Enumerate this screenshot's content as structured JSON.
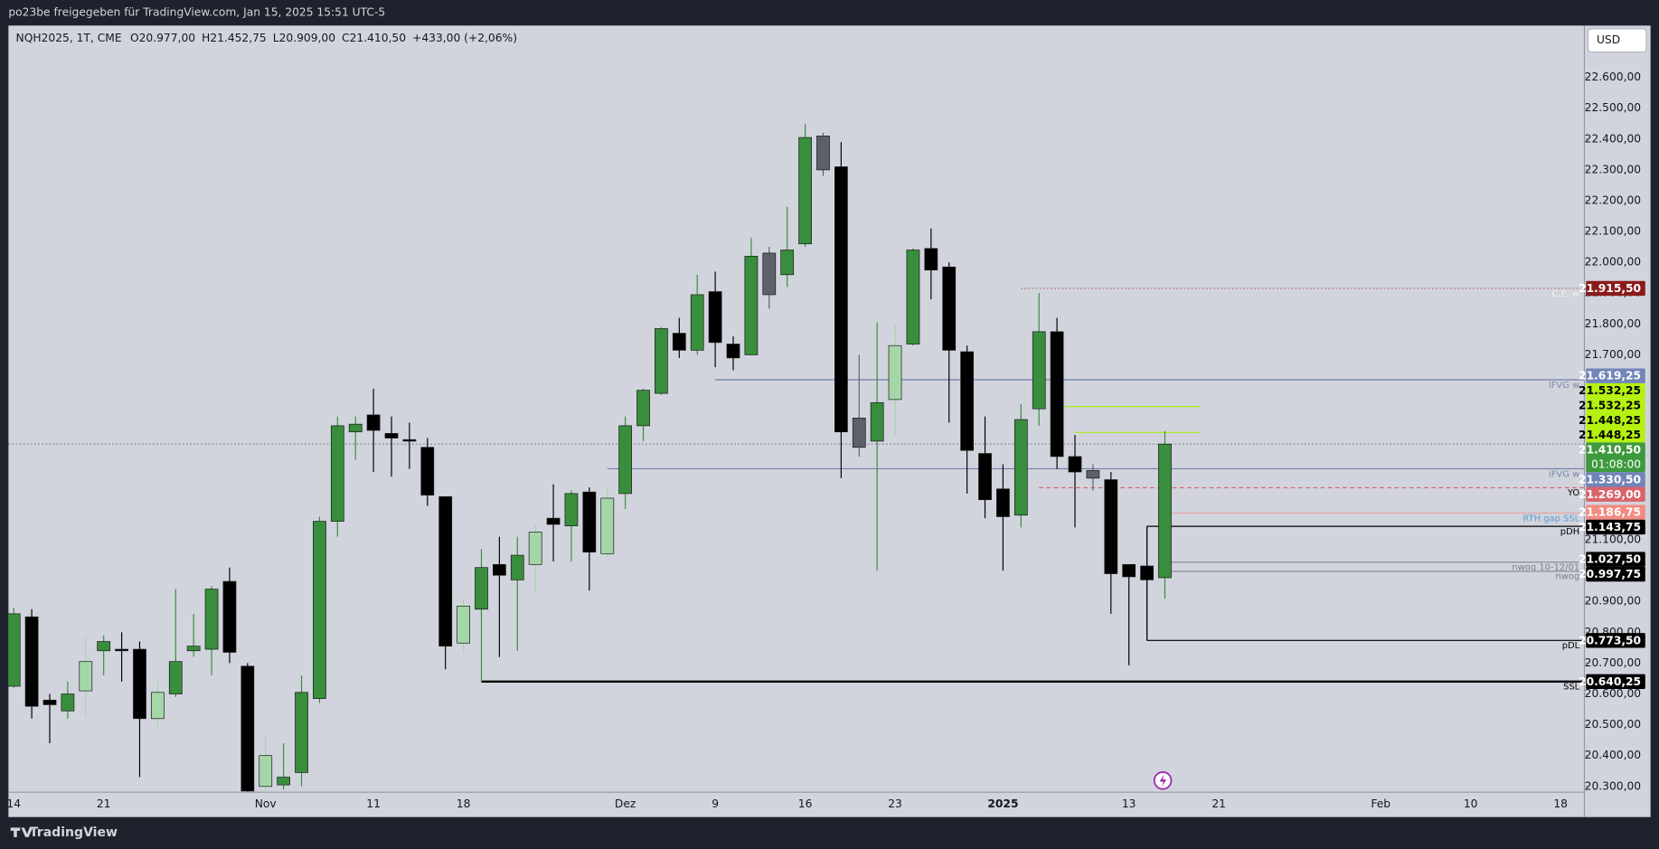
{
  "header": {
    "share_text": "po23be freigegeben für TradingView.com, Jan 15, 2025 15:51 UTC-5",
    "symbol": "NQH2025, 1T, CME",
    "ohlc": [
      "O20.977,00",
      "H21.452,75",
      "L20.909,00",
      "C21.410,50",
      "+433,00 (+2,06%)"
    ],
    "currency": "USD"
  },
  "footer": {
    "brand": "TradingView"
  },
  "chart_data": {
    "type": "candlestick",
    "categories": [
      "14",
      null,
      null,
      null,
      null,
      "21",
      null,
      null,
      null,
      null,
      null,
      null,
      null,
      null,
      "Nov",
      null,
      null,
      null,
      null,
      null,
      "11",
      null,
      null,
      null,
      null,
      "18",
      null,
      null,
      null,
      null,
      null,
      null,
      null,
      null,
      "Dez",
      null,
      null,
      null,
      null,
      "9",
      null,
      null,
      null,
      null,
      "16",
      null,
      null,
      null,
      null,
      "23",
      null,
      null,
      null,
      null,
      null,
      "2025",
      null,
      null,
      null,
      null,
      null,
      null,
      "13",
      null,
      null,
      null,
      null,
      "21",
      null,
      null,
      null,
      null,
      null,
      null,
      null,
      null,
      "Feb",
      null,
      null,
      null,
      null,
      "10",
      null,
      null,
      null,
      null,
      "18"
    ],
    "open": [
      20625,
      20850,
      20580,
      20545,
      20610,
      20740,
      20745,
      20745,
      20520,
      20600,
      20740,
      20745,
      20965,
      20690,
      20300,
      20305,
      20345,
      20585,
      21160,
      21450,
      21505,
      21445,
      21425,
      21400,
      21240,
      20765,
      20875,
      21020,
      20970,
      21020,
      21170,
      21145,
      21255,
      21055,
      21250,
      21470,
      21575,
      21770,
      21715,
      21905,
      21735,
      21700,
      22030,
      21960,
      22060,
      22410,
      22310,
      21495,
      21420,
      21555,
      21735,
      22045,
      21985,
      21710,
      21380,
      21265,
      21180,
      21525,
      21775,
      21370,
      21325,
      21295,
      21020,
      21015,
      20977,
      null,
      null,
      null,
      null,
      null,
      null,
      null,
      null,
      null,
      null,
      null,
      null,
      null,
      null,
      null,
      null,
      null,
      null,
      null,
      null,
      null,
      null
    ],
    "high": [
      20880,
      20875,
      20600,
      20640,
      20785,
      20790,
      20800,
      20770,
      20640,
      20940,
      20860,
      20950,
      21010,
      20700,
      20470,
      20440,
      20660,
      21175,
      21500,
      21500,
      21590,
      21500,
      21480,
      21430,
      21240,
      20910,
      21070,
      21110,
      21110,
      21150,
      21280,
      21260,
      21270,
      21265,
      21500,
      21590,
      21790,
      21820,
      21960,
      21970,
      21760,
      22080,
      22050,
      22180,
      22450,
      22420,
      22390,
      21700,
      21805,
      21800,
      22045,
      22110,
      22000,
      21730,
      21500,
      21345,
      21540,
      21900,
      21820,
      21440,
      21345,
      21320,
      21020,
      21143.75,
      21452.75,
      null,
      null,
      null,
      null,
      null,
      null,
      null,
      null,
      null,
      null,
      null,
      null,
      null,
      null,
      null,
      null,
      null,
      null,
      null,
      null,
      null,
      null
    ],
    "low": [
      20620,
      20520,
      20440,
      20520,
      20530,
      20660,
      20640,
      20330,
      20490,
      20590,
      20720,
      20660,
      20700,
      20270,
      20290,
      20290,
      20300,
      20570,
      21110,
      21360,
      21320,
      21305,
      21330,
      21210,
      20680,
      20730,
      20640,
      20720,
      20740,
      20930,
      21030,
      21030,
      20935,
      21040,
      21200,
      21420,
      21570,
      21690,
      21700,
      21660,
      21650,
      21700,
      21850,
      21920,
      22050,
      22280,
      21300,
      21370,
      21000,
      21440,
      21730,
      21880,
      21480,
      21250,
      21170,
      21000,
      21140,
      21470,
      21330,
      21140,
      21260,
      20860,
      20693,
      20773.5,
      20909,
      null,
      null,
      null,
      null,
      null,
      null,
      null,
      null,
      null,
      null,
      null,
      null,
      null,
      null,
      null,
      null,
      null,
      null,
      null,
      null,
      null,
      null
    ],
    "close": [
      20860,
      20560,
      20565,
      20600,
      20705,
      20770,
      20740,
      20520,
      20605,
      20705,
      20755,
      20940,
      20735,
      20285,
      20400,
      20330,
      20605,
      21160,
      21470,
      21475,
      21455,
      21430,
      21420,
      21245,
      20755,
      20885,
      21010,
      20985,
      21050,
      21125,
      21150,
      21250,
      21060,
      21235,
      21470,
      21585,
      21785,
      21715,
      21895,
      21740,
      21690,
      22020,
      21895,
      22040,
      22405,
      22300,
      21450,
      21400,
      21545,
      21730,
      22040,
      21975,
      21715,
      21390,
      21230,
      21175,
      21490,
      21775,
      21370,
      21320,
      21300,
      20990,
      20980,
      20970,
      21410.5,
      null,
      null,
      null,
      null,
      null,
      null,
      null,
      null,
      null,
      null,
      null,
      null,
      null,
      null,
      null,
      null,
      null,
      null,
      null,
      null,
      null,
      null
    ],
    "candle_colors": [
      "#388e3c",
      "#000000",
      "#000000",
      "#388e3c",
      "#a5d6a7",
      "#388e3c",
      "#000000",
      "#000000",
      "#a5d6a7",
      "#388e3c",
      "#388e3c",
      "#388e3c",
      "#000000",
      "#000000",
      "#a5d6a7",
      "#388e3c",
      "#388e3c",
      "#388e3c",
      "#388e3c",
      "#388e3c",
      "#000000",
      "#000000",
      "#000000",
      "#000000",
      "#000000",
      "#a5d6a7",
      "#388e3c",
      "#000000",
      "#388e3c",
      "#a5d6a7",
      "#000000",
      "#388e3c",
      "#000000",
      "#a5d6a7",
      "#388e3c",
      "#388e3c",
      "#388e3c",
      "#000000",
      "#388e3c",
      "#000000",
      "#000000",
      "#388e3c",
      "#5d606b",
      "#388e3c",
      "#388e3c",
      "#5d606b",
      "#000000",
      "#5d606b",
      "#388e3c",
      "#a5d6a7",
      "#388e3c",
      "#000000",
      "#000000",
      "#000000",
      "#000000",
      "#000000",
      "#388e3c",
      "#388e3c",
      "#000000",
      "#000000",
      "#5d606b",
      "#000000",
      "#000000",
      "#000000",
      "#388e3c",
      null,
      null,
      null,
      null,
      null,
      null,
      null,
      null,
      null,
      null,
      null,
      null,
      null,
      null,
      null,
      null,
      null,
      null,
      null,
      null,
      null,
      null
    ],
    "ylim": [
      20283,
      22768
    ],
    "yticks": [
      {
        "value": 22600,
        "label": "22.600,00"
      },
      {
        "value": 22500,
        "label": "22.500,00"
      },
      {
        "value": 22400,
        "label": "22.400,00"
      },
      {
        "value": 22300,
        "label": "22.300,00"
      },
      {
        "value": 22200,
        "label": "22.200,00"
      },
      {
        "value": 22100,
        "label": "22.100,00"
      },
      {
        "value": 22000,
        "label": "22.000,00"
      },
      {
        "value": 21900,
        "label": "21.900,00"
      },
      {
        "value": 21800,
        "label": "21.800,00"
      },
      {
        "value": 21700,
        "label": "21.700,00"
      },
      {
        "value": 21100,
        "label": "21.100,00"
      },
      {
        "value": 20900,
        "label": "20.900,00"
      },
      {
        "value": 20800,
        "label": "20.800,00"
      },
      {
        "value": 20700,
        "label": "20.700,00"
      },
      {
        "value": 20600,
        "label": "20.600,00"
      },
      {
        "value": 20500,
        "label": "20.500,00"
      },
      {
        "value": 20400,
        "label": "20.400,00"
      },
      {
        "value": 20300,
        "label": "20.300,00"
      }
    ],
    "grid": false,
    "levels": [
      {
        "name": "C.E. w",
        "value": 21915.5,
        "labels": [
          "21.915,50"
        ],
        "bg": "#8b1a1a",
        "text_color": "#ffffff",
        "line_color": "#b06a6a",
        "name_color": "#f2f2f2",
        "style": "dotted",
        "start": 56
      },
      {
        "name": "iFVG w",
        "value": 21619.25,
        "labels": [
          "21.619,25"
        ],
        "bg": "#7185b8",
        "text_color": "#ffffff",
        "line_color": "#6f7fa8",
        "name_color": "#7a8aa8",
        "style": "solid",
        "start": 39
      },
      {
        "value": 21532.25,
        "labels": [
          "21.532,25",
          "21.532,25"
        ],
        "bg": "#b5f20f",
        "text_color": "#000000",
        "line_color": "#a8e81a",
        "style": "solid",
        "start": 58,
        "end": 66
      },
      {
        "value": 21448.25,
        "labels": [
          "21.448,25",
          "21.448,25"
        ],
        "bg": "#b5f20f",
        "text_color": "#000000",
        "line_color": "#a8e81a",
        "style": "solid",
        "start": 59,
        "end": 66
      },
      {
        "value": 21410.5,
        "labels": [
          "21.410,50"
        ],
        "countdown": "01:08:00",
        "bg": "#3d9a3d",
        "text_color": "#ffffff",
        "line_color": "#7a7f8c",
        "style": "dotted",
        "start": 0
      },
      {
        "name": "iFVG w",
        "value": 21330.5,
        "labels": [
          "21.330,50"
        ],
        "bg": "#7185b8",
        "text_color": "#ffffff",
        "line_color": "#6f7fa8",
        "name_color": "#7a8aa8",
        "style": "solid",
        "start": 33
      },
      {
        "name": "YO",
        "value": 21269,
        "labels": [
          "21.269,00"
        ],
        "bg": "#d9636b",
        "text_color": "#ffffff",
        "line_color": "#d9636b",
        "name_color": "#000000",
        "style": "dashed",
        "start": 57
      },
      {
        "name": "RTH gap SSL",
        "value": 21186.75,
        "labels": [
          "21.186,75"
        ],
        "bg": "#f28b82",
        "text_color": "#ffffff",
        "line_color": "#e8a0a0",
        "name_color": "#5b9bd5",
        "style": "solid",
        "start": 64
      },
      {
        "name": "pDH",
        "value": 21143.75,
        "labels": [
          "21.143,75"
        ],
        "bg": "#000000",
        "text_color": "#ffffff",
        "line_color": "#000000",
        "name_color": "#000000",
        "style": "solid",
        "start": 63
      },
      {
        "name": "nwog 10-12/01",
        "value": 21027.5,
        "labels": [
          "21.027,50"
        ],
        "bg": "#000000",
        "text_color": "#ffffff",
        "line_color": "#8a8d96",
        "name_color": "#7a7d86",
        "style": "solid",
        "start": 64
      },
      {
        "name": "nwog",
        "value": 20997.75,
        "labels": [
          "20.997,75"
        ],
        "bg": "#000000",
        "text_color": "#ffffff",
        "line_color": "#8a8d96",
        "name_color": "#7a7d86",
        "style": "solid",
        "start": 64
      },
      {
        "name": "pDL",
        "value": 20773.5,
        "labels": [
          "20.773,50"
        ],
        "bg": "#000000",
        "text_color": "#ffffff",
        "line_color": "#000000",
        "name_color": "#000000",
        "style": "solid",
        "start": 63
      },
      {
        "name": "SSL",
        "value": 20640.25,
        "labels": [
          "20.640,25"
        ],
        "bg": "#000000",
        "text_color": "#ffffff",
        "line_color": "#000000",
        "name_color": "#000000",
        "style": "thick",
        "start": 26
      }
    ]
  }
}
